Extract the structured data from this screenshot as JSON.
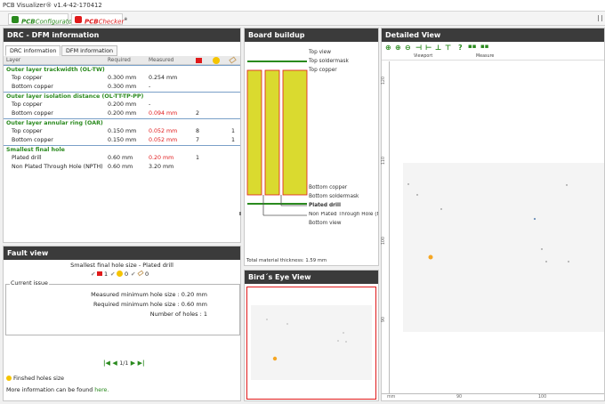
{
  "app": {
    "title": "PCB Visualizer® v1.4-42-170412"
  },
  "app_tabs": {
    "configurator": {
      "prefix": "PCB",
      "name": "Configurator",
      "mark": "®"
    },
    "checker": {
      "prefix": "PCB",
      "name": "Checker",
      "mark": "®"
    }
  },
  "drc": {
    "title": "DRC - DFM information",
    "tabs": [
      "DRC information",
      "DFM information"
    ],
    "columns": {
      "layer": "Layer",
      "required": "Required",
      "measured": "Measured"
    },
    "groups": [
      {
        "name": "Outer layer trackwidth (OL-TW)",
        "rows": [
          {
            "layer": "Top copper",
            "required": "0.300 mm",
            "measured": "0.254 mm",
            "error": "",
            "warn": "",
            "info": "",
            "red": false
          },
          {
            "layer": "Bottom copper",
            "required": "0.300 mm",
            "measured": "-",
            "error": "",
            "warn": "",
            "info": "",
            "red": false
          }
        ]
      },
      {
        "name": "Outer layer isolation distance (OL-TT-TP-PP)",
        "rows": [
          {
            "layer": "Top copper",
            "required": "0.200 mm",
            "measured": "-",
            "error": "",
            "warn": "",
            "info": "",
            "red": false
          },
          {
            "layer": "Bottom copper",
            "required": "0.200 mm",
            "measured": "0.094 mm",
            "error": "2",
            "warn": "",
            "info": "",
            "red": true
          }
        ]
      },
      {
        "name": "Outer layer annular ring (OAR)",
        "rows": [
          {
            "layer": "Top copper",
            "required": "0.150 mm",
            "measured": "0.052 mm",
            "error": "8",
            "warn": "",
            "info": "1",
            "red": true
          },
          {
            "layer": "Bottom copper",
            "required": "0.150 mm",
            "measured": "0.052 mm",
            "error": "7",
            "warn": "",
            "info": "1",
            "red": true
          }
        ]
      },
      {
        "name": "Smallest final hole",
        "rows": [
          {
            "layer": "Plated drill",
            "required": "0.60 mm",
            "measured": "0.20 mm",
            "error": "1",
            "warn": "",
            "info": "",
            "red": true
          },
          {
            "layer": "Non Plated Through Hole (NPTH)",
            "required": "0.60 mm",
            "measured": "3.20 mm",
            "error": "",
            "warn": "",
            "info": "",
            "red": false
          }
        ]
      }
    ]
  },
  "fault": {
    "title": "Fault view",
    "subtitle": "Smallest final hole size - Plated drill",
    "counts": {
      "error": "1",
      "warning": "0",
      "info": "0"
    },
    "legend": "Current issue",
    "lines": [
      "Measured minimum hole size : 0.20 mm",
      "Required minimum hole size : 0.60 mm",
      "Number of holes : 1"
    ],
    "pager": "1/1",
    "tip": "Finshed holes size",
    "more_prefix": "More information can be found ",
    "more_link": "here."
  },
  "board": {
    "title": "Board buildup",
    "labels": [
      "Top view",
      "Top soldermask",
      "Top copper",
      "Bottom copper",
      "Bottom soldermask",
      "Plated drill",
      "Non Plated Through Hole (NPTH)",
      "Bottom view"
    ],
    "thickness": "Total material thickness: 1.59 mm"
  },
  "bird": {
    "title": "Bird´s Eye View"
  },
  "detailed": {
    "title": "Detailed View",
    "toolbar_groups": [
      "Viewport",
      "Measure"
    ],
    "y_ticks": [
      "120",
      "110",
      "100",
      "90"
    ],
    "x_ticks": [
      "mm",
      "90",
      "100"
    ]
  },
  "colors": {
    "accent_green": "#2a8a1e",
    "error_red": "#e0191a",
    "fault_hole": "#f5a623",
    "header_dark": "#3b3b3b"
  }
}
